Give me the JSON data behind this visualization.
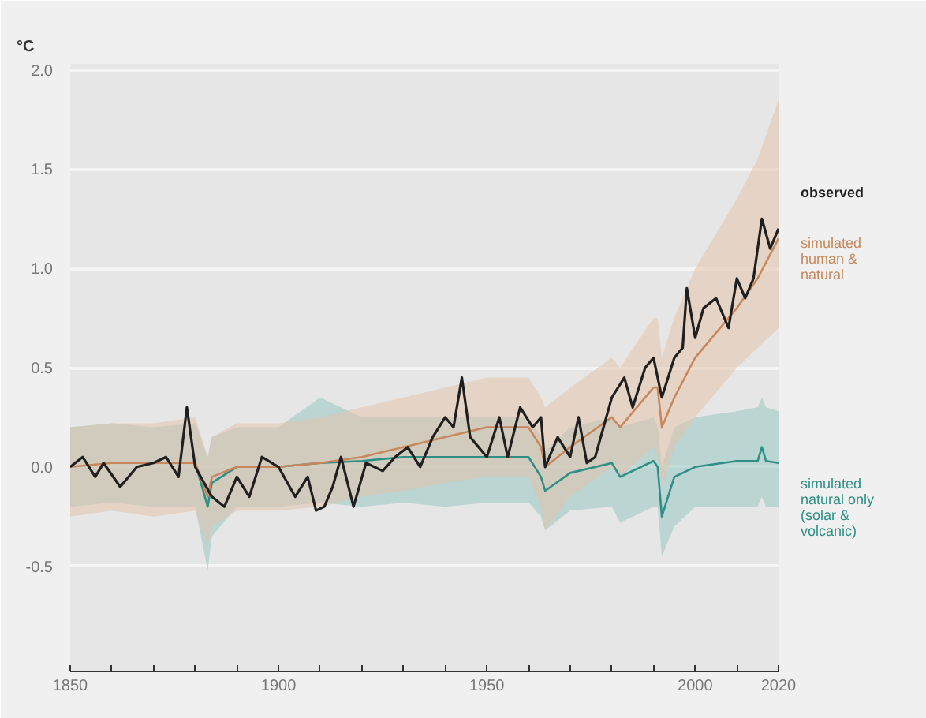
{
  "chart_data": {
    "type": "line",
    "ylabel": "°C",
    "xlim": [
      1850,
      2020
    ],
    "ylim": [
      -1.03,
      2.03
    ],
    "xticks": [
      1850,
      {
        "value": 1860,
        "label": null
      },
      {
        "value": 1870,
        "label": null
      },
      {
        "value": 1880,
        "label": null
      },
      {
        "value": 1890,
        "label": null
      },
      1900,
      {
        "value": 1910,
        "label": null
      },
      {
        "value": 1920,
        "label": null
      },
      {
        "value": 1930,
        "label": null
      },
      {
        "value": 1940,
        "label": null
      },
      1950,
      {
        "value": 1960,
        "label": null
      },
      {
        "value": 1970,
        "label": null
      },
      {
        "value": 1980,
        "label": null
      },
      {
        "value": 1990,
        "label": null
      },
      2000,
      {
        "value": 2010,
        "label": null
      },
      2020
    ],
    "yticks": [
      {
        "value": -0.5,
        "label": "-0.5"
      },
      {
        "value": 0,
        "label": "0.0"
      },
      {
        "value": 0.5,
        "label": "0.5"
      },
      {
        "value": 1,
        "label": "1.0"
      },
      {
        "value": 1.5,
        "label": "1.5"
      },
      {
        "value": 2,
        "label": "2.0"
      }
    ],
    "grid": "y",
    "series": [
      {
        "name": "simulated natural only (solar & volcanic)",
        "color": "#2f8f86",
        "x": [
          1850,
          1860,
          1870,
          1880,
          1883,
          1884,
          1890,
          1900,
          1910,
          1920,
          1930,
          1940,
          1950,
          1960,
          1963,
          1964,
          1970,
          1980,
          1982,
          1990,
          1991,
          1992,
          1995,
          2000,
          2010,
          2015,
          2016,
          2017,
          2020
        ],
        "values": [
          null,
          null,
          0.02,
          0.02,
          -0.2,
          -0.08,
          0.0,
          0.0,
          0.02,
          0.03,
          0.05,
          0.05,
          0.05,
          0.05,
          -0.05,
          -0.12,
          -0.03,
          0.02,
          -0.05,
          0.03,
          0.0,
          -0.25,
          -0.05,
          0.0,
          0.03,
          0.03,
          0.1,
          0.03,
          0.02
        ],
        "lower": [
          -0.2,
          -0.18,
          -0.2,
          -0.2,
          -0.52,
          -0.35,
          -0.2,
          -0.2,
          -0.18,
          -0.2,
          -0.18,
          -0.2,
          -0.18,
          -0.18,
          -0.25,
          -0.32,
          -0.22,
          -0.2,
          -0.28,
          -0.2,
          -0.2,
          -0.45,
          -0.3,
          -0.2,
          -0.2,
          -0.2,
          -0.15,
          -0.2,
          -0.2
        ],
        "upper": [
          0.2,
          0.22,
          0.2,
          0.22,
          0.05,
          0.15,
          0.2,
          0.2,
          0.35,
          0.25,
          0.25,
          0.25,
          0.25,
          0.25,
          0.15,
          0.08,
          0.2,
          0.25,
          0.2,
          0.25,
          0.2,
          0.0,
          0.2,
          0.25,
          0.28,
          0.3,
          0.35,
          0.3,
          0.28
        ]
      },
      {
        "name": "simulated human & natural",
        "color": "#c8875a",
        "x": [
          1850,
          1860,
          1870,
          1880,
          1883,
          1884,
          1890,
          1900,
          1910,
          1920,
          1930,
          1940,
          1950,
          1960,
          1963,
          1964,
          1970,
          1980,
          1982,
          1990,
          1991,
          1992,
          1995,
          2000,
          2010,
          2015,
          2020
        ],
        "values": [
          0.0,
          0.02,
          0.02,
          0.02,
          -0.15,
          -0.05,
          0.0,
          0.0,
          0.02,
          0.05,
          0.1,
          0.15,
          0.2,
          0.2,
          0.1,
          0.0,
          0.1,
          0.25,
          0.2,
          0.4,
          0.4,
          0.2,
          0.35,
          0.55,
          0.8,
          0.95,
          1.15
        ],
        "lower": [
          -0.25,
          -0.22,
          -0.25,
          -0.22,
          -0.4,
          -0.3,
          -0.22,
          -0.22,
          -0.2,
          -0.15,
          -0.12,
          -0.08,
          -0.05,
          -0.05,
          -0.2,
          -0.32,
          -0.15,
          0.0,
          -0.05,
          0.1,
          0.05,
          -0.1,
          0.1,
          0.25,
          0.5,
          0.6,
          0.7
        ],
        "upper": [
          0.2,
          0.22,
          0.22,
          0.25,
          0.05,
          0.15,
          0.22,
          0.22,
          0.25,
          0.3,
          0.35,
          0.4,
          0.45,
          0.45,
          0.35,
          0.3,
          0.4,
          0.55,
          0.5,
          0.75,
          0.75,
          0.55,
          0.75,
          1.0,
          1.35,
          1.55,
          1.85
        ]
      },
      {
        "name": "observed",
        "color": "#1f1f1f",
        "x": [
          1850,
          1853,
          1856,
          1858,
          1862,
          1866,
          1870,
          1873,
          1876,
          1878,
          1880,
          1884,
          1887,
          1890,
          1893,
          1896,
          1900,
          1904,
          1907,
          1909,
          1911,
          1913,
          1915,
          1918,
          1921,
          1925,
          1928,
          1931,
          1934,
          1937,
          1940,
          1942,
          1944,
          1946,
          1948,
          1950,
          1953,
          1955,
          1958,
          1961,
          1963,
          1964,
          1967,
          1970,
          1972,
          1974,
          1976,
          1978,
          1980,
          1983,
          1985,
          1988,
          1990,
          1992,
          1995,
          1997,
          1998,
          2000,
          2002,
          2005,
          2008,
          2010,
          2012,
          2014,
          2016,
          2018,
          2020
        ],
        "values": [
          0.0,
          0.05,
          -0.05,
          0.02,
          -0.1,
          0.0,
          0.02,
          0.05,
          -0.05,
          0.3,
          0.0,
          -0.15,
          -0.2,
          -0.05,
          -0.15,
          0.05,
          0.0,
          -0.15,
          -0.05,
          -0.22,
          -0.2,
          -0.1,
          0.05,
          -0.2,
          0.02,
          -0.02,
          0.05,
          0.1,
          0.0,
          0.15,
          0.25,
          0.2,
          0.45,
          0.15,
          0.1,
          0.05,
          0.25,
          0.05,
          0.3,
          0.2,
          0.25,
          0.0,
          0.15,
          0.05,
          0.25,
          0.02,
          0.05,
          0.2,
          0.35,
          0.45,
          0.3,
          0.5,
          0.55,
          0.35,
          0.55,
          0.6,
          0.9,
          0.65,
          0.8,
          0.85,
          0.7,
          0.95,
          0.85,
          0.95,
          1.25,
          1.1,
          1.2
        ]
      }
    ]
  }
}
